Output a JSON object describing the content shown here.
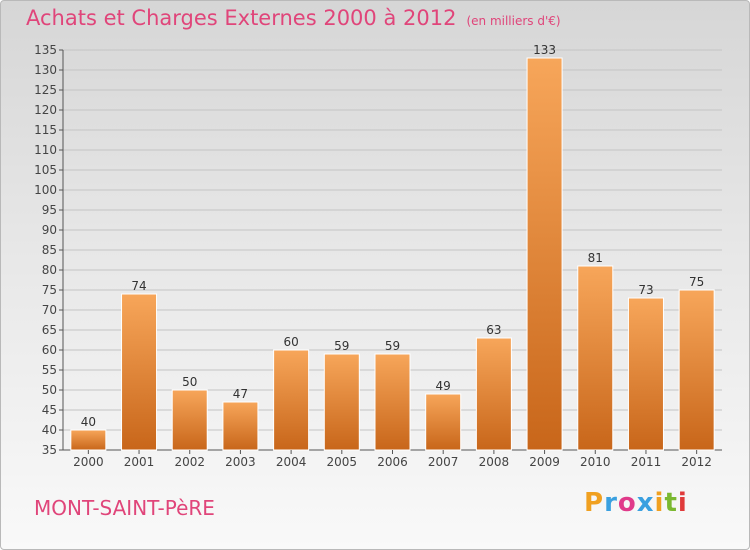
{
  "header": {
    "title": "Achats et Charges Externes 2000 à 2012",
    "subtitle": "(en milliers d'€)"
  },
  "footer": {
    "commune": "MONT-SAINT-PèRE",
    "logo_letters": [
      "P",
      "r",
      "o",
      "x",
      "i",
      "t",
      "i"
    ],
    "logo_colors": [
      "#f0a020",
      "#3aa0e0",
      "#e03a8a",
      "#3aa0e0",
      "#f0a020",
      "#7ab830",
      "#e03a3a"
    ]
  },
  "colors": {
    "title": "#e0457a",
    "bar_light": "#f7a65a",
    "bar_dark": "#c8661a"
  },
  "chart_data": {
    "type": "bar",
    "categories": [
      "2000",
      "2001",
      "2002",
      "2003",
      "2004",
      "2005",
      "2006",
      "2007",
      "2008",
      "2009",
      "2010",
      "2011",
      "2012"
    ],
    "values": [
      40,
      74,
      50,
      47,
      60,
      59,
      59,
      49,
      63,
      133,
      81,
      73,
      75
    ],
    "ylim": [
      35,
      135
    ],
    "yticks": [
      35,
      40,
      45,
      50,
      55,
      60,
      65,
      70,
      75,
      80,
      85,
      90,
      95,
      100,
      105,
      110,
      115,
      120,
      125,
      130,
      135
    ],
    "grid": true,
    "title": "Achats et Charges Externes 2000 à 2012",
    "xlabel": "",
    "ylabel": ""
  }
}
